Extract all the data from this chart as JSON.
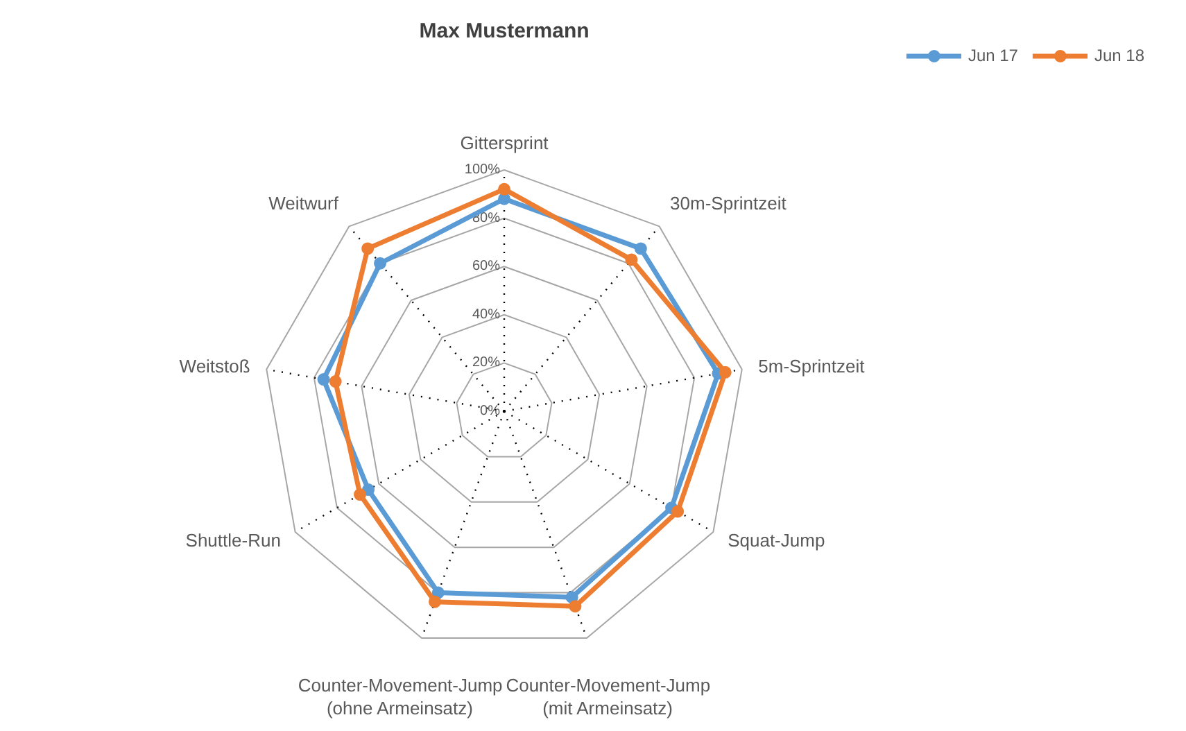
{
  "chart_data": {
    "type": "radar",
    "title": "Max Mustermann",
    "categories": [
      "Gittersprint",
      "30m-Sprintzeit",
      "5m-Sprintzeit",
      "Squat-Jump",
      "Counter-Movement-Jump (mit Armeinsatz)",
      "Counter-Movement-Jump (ohne Armeinsatz)",
      "Shuttle-Run",
      "Weitstoß",
      "Weitwurf"
    ],
    "series": [
      {
        "name": "Jun 17",
        "color": "#5b9bd5",
        "values": [
          88,
          88,
          90,
          80,
          82,
          80,
          65,
          76,
          80
        ]
      },
      {
        "name": "Jun 18",
        "color": "#ed7d31",
        "values": [
          92,
          82,
          93,
          83,
          86,
          84,
          69,
          71,
          88
        ]
      }
    ],
    "ylim": [
      0,
      100
    ],
    "yticks": [
      {
        "value": 0,
        "label": "0%"
      },
      {
        "value": 20,
        "label": "20%"
      },
      {
        "value": 40,
        "label": "40%"
      },
      {
        "value": 60,
        "label": "60%"
      },
      {
        "value": 80,
        "label": "80%"
      },
      {
        "value": 100,
        "label": "100%"
      }
    ],
    "grid": true,
    "legend": "top right",
    "marker": "circle"
  }
}
